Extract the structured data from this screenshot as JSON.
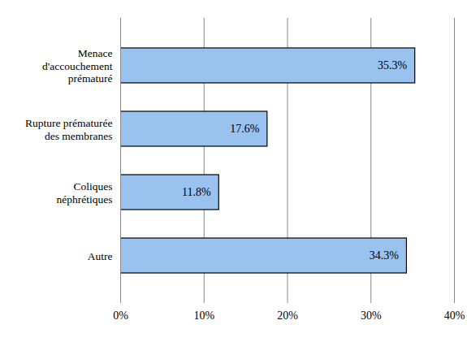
{
  "chart_data": {
    "type": "bar",
    "orientation": "horizontal",
    "categories": [
      "Menace\nd'accouchement\nprématuré",
      "Rupture prématurée\ndes membranes",
      "Coliques\nnéphrétiques",
      "Autre"
    ],
    "values": [
      35.3,
      17.6,
      11.8,
      34.3
    ],
    "value_labels": [
      "35.3%",
      "17.6%",
      "11.8%",
      "34.3%"
    ],
    "data_labels": true,
    "color": "#99c2ef",
    "xlim": [
      0,
      40
    ],
    "xticks": [
      {
        "value": 0,
        "label": "0%"
      },
      {
        "value": 10,
        "label": "10%"
      },
      {
        "value": 20,
        "label": "20%"
      },
      {
        "value": 30,
        "label": "30%"
      },
      {
        "value": 40,
        "label": "40%"
      }
    ],
    "grid": true
  }
}
